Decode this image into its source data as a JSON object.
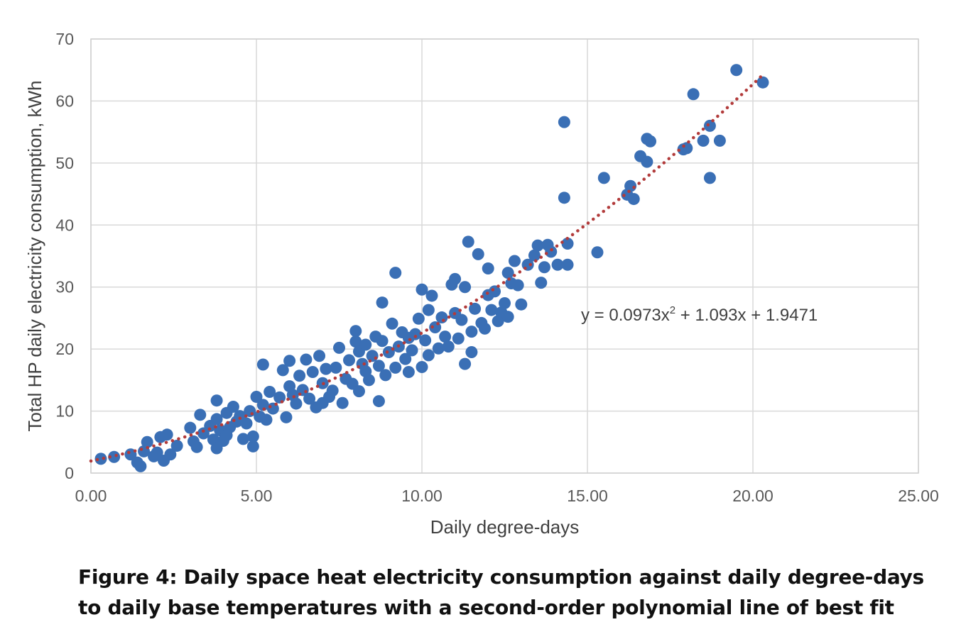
{
  "chart_data": {
    "type": "scatter",
    "xlabel": "Daily degree-days",
    "ylabel": "Total HP daily electricity consumption, kWh",
    "xlim": [
      0,
      25
    ],
    "ylim": [
      0,
      70
    ],
    "x_ticks": [
      "0.00",
      "5.00",
      "10.00",
      "15.00",
      "20.00",
      "25.00"
    ],
    "y_ticks": [
      "0",
      "10",
      "20",
      "30",
      "40",
      "50",
      "60",
      "70"
    ],
    "grid": true,
    "point_color": "#3a6fb5",
    "trendline": {
      "type": "polynomial-2",
      "coefficients": [
        0.0973,
        1.093,
        1.9471
      ],
      "x_range": [
        0,
        20.3
      ],
      "color": "#b23b3b",
      "style": "dotted",
      "equation_parts": [
        "y = 0.0973x",
        "2",
        " + 1.093x + 1.9471"
      ]
    },
    "points": [
      [
        0.3,
        2.3
      ],
      [
        0.7,
        2.6
      ],
      [
        1.2,
        3.0
      ],
      [
        1.4,
        1.7
      ],
      [
        1.5,
        1.1
      ],
      [
        1.6,
        3.5
      ],
      [
        1.7,
        5.0
      ],
      [
        1.9,
        2.7
      ],
      [
        2.0,
        3.3
      ],
      [
        2.1,
        5.8
      ],
      [
        2.2,
        2.0
      ],
      [
        2.3,
        6.2
      ],
      [
        2.4,
        3.0
      ],
      [
        2.6,
        4.4
      ],
      [
        3.0,
        7.3
      ],
      [
        3.1,
        5.1
      ],
      [
        3.2,
        4.2
      ],
      [
        3.3,
        9.4
      ],
      [
        3.4,
        6.4
      ],
      [
        3.6,
        7.6
      ],
      [
        3.7,
        5.4
      ],
      [
        3.8,
        8.7
      ],
      [
        3.8,
        4.0
      ],
      [
        3.8,
        11.7
      ],
      [
        3.9,
        6.9
      ],
      [
        4.0,
        5.2
      ],
      [
        4.1,
        6.1
      ],
      [
        4.1,
        9.7
      ],
      [
        4.2,
        7.4
      ],
      [
        4.3,
        10.7
      ],
      [
        4.4,
        8.3
      ],
      [
        4.5,
        9.2
      ],
      [
        4.6,
        5.5
      ],
      [
        4.7,
        8.0
      ],
      [
        4.8,
        10.0
      ],
      [
        4.9,
        4.3
      ],
      [
        4.9,
        5.9
      ],
      [
        5.0,
        12.3
      ],
      [
        5.1,
        9.1
      ],
      [
        5.2,
        17.5
      ],
      [
        5.2,
        11.0
      ],
      [
        5.3,
        8.6
      ],
      [
        5.4,
        13.1
      ],
      [
        5.5,
        10.4
      ],
      [
        5.7,
        12.2
      ],
      [
        5.8,
        16.6
      ],
      [
        5.9,
        9.0
      ],
      [
        6.0,
        14.0
      ],
      [
        6.0,
        18.1
      ],
      [
        6.1,
        12.6
      ],
      [
        6.2,
        11.2
      ],
      [
        6.3,
        15.7
      ],
      [
        6.4,
        13.4
      ],
      [
        6.5,
        18.3
      ],
      [
        6.6,
        12.0
      ],
      [
        6.7,
        16.3
      ],
      [
        6.8,
        10.6
      ],
      [
        6.9,
        18.9
      ],
      [
        7.0,
        14.5
      ],
      [
        7.0,
        11.3
      ],
      [
        7.1,
        16.8
      ],
      [
        7.2,
        12.3
      ],
      [
        7.3,
        13.3
      ],
      [
        7.4,
        17.0
      ],
      [
        7.5,
        20.2
      ],
      [
        7.6,
        11.3
      ],
      [
        7.7,
        15.2
      ],
      [
        7.8,
        18.2
      ],
      [
        7.9,
        14.4
      ],
      [
        8.0,
        21.2
      ],
      [
        8.0,
        22.9
      ],
      [
        8.1,
        19.6
      ],
      [
        8.1,
        13.2
      ],
      [
        8.2,
        17.6
      ],
      [
        8.3,
        16.4
      ],
      [
        8.3,
        20.7
      ],
      [
        8.4,
        15.0
      ],
      [
        8.5,
        18.9
      ],
      [
        8.6,
        22.0
      ],
      [
        8.7,
        11.6
      ],
      [
        8.7,
        17.3
      ],
      [
        8.8,
        27.5
      ],
      [
        8.8,
        21.3
      ],
      [
        8.9,
        15.8
      ],
      [
        9.0,
        19.5
      ],
      [
        9.1,
        24.1
      ],
      [
        9.2,
        32.3
      ],
      [
        9.2,
        17.0
      ],
      [
        9.3,
        20.4
      ],
      [
        9.4,
        22.7
      ],
      [
        9.5,
        18.4
      ],
      [
        9.6,
        21.8
      ],
      [
        9.6,
        16.3
      ],
      [
        9.7,
        19.8
      ],
      [
        9.8,
        22.4
      ],
      [
        9.9,
        24.9
      ],
      [
        10.0,
        17.1
      ],
      [
        10.0,
        29.6
      ],
      [
        10.1,
        21.4
      ],
      [
        10.2,
        26.3
      ],
      [
        10.2,
        19.0
      ],
      [
        10.3,
        28.6
      ],
      [
        10.4,
        23.5
      ],
      [
        10.5,
        20.1
      ],
      [
        10.6,
        25.1
      ],
      [
        10.7,
        22.0
      ],
      [
        10.8,
        20.4
      ],
      [
        10.9,
        30.4
      ],
      [
        11.0,
        25.8
      ],
      [
        11.0,
        31.3
      ],
      [
        11.1,
        21.7
      ],
      [
        11.2,
        24.7
      ],
      [
        11.3,
        17.6
      ],
      [
        11.3,
        30.0
      ],
      [
        11.4,
        37.3
      ],
      [
        11.5,
        22.8
      ],
      [
        11.5,
        19.5
      ],
      [
        11.6,
        26.5
      ],
      [
        11.7,
        35.3
      ],
      [
        11.8,
        24.2
      ],
      [
        11.9,
        23.3
      ],
      [
        12.0,
        28.7
      ],
      [
        12.0,
        33.0
      ],
      [
        12.1,
        26.3
      ],
      [
        12.2,
        29.3
      ],
      [
        12.3,
        24.5
      ],
      [
        12.4,
        25.9
      ],
      [
        12.5,
        27.4
      ],
      [
        12.6,
        32.3
      ],
      [
        12.6,
        25.2
      ],
      [
        12.7,
        30.6
      ],
      [
        12.8,
        34.2
      ],
      [
        12.9,
        30.3
      ],
      [
        13.0,
        27.2
      ],
      [
        13.2,
        33.6
      ],
      [
        13.4,
        35.1
      ],
      [
        13.5,
        36.7
      ],
      [
        13.6,
        30.7
      ],
      [
        13.7,
        33.2
      ],
      [
        13.8,
        36.8
      ],
      [
        13.9,
        35.7
      ],
      [
        14.1,
        33.6
      ],
      [
        14.3,
        44.4
      ],
      [
        14.3,
        56.6
      ],
      [
        14.4,
        37.0
      ],
      [
        14.4,
        33.6
      ],
      [
        15.3,
        35.6
      ],
      [
        15.5,
        47.6
      ],
      [
        16.2,
        44.9
      ],
      [
        16.3,
        46.3
      ],
      [
        16.4,
        44.2
      ],
      [
        16.6,
        51.1
      ],
      [
        16.8,
        50.2
      ],
      [
        16.8,
        53.9
      ],
      [
        16.9,
        53.5
      ],
      [
        17.9,
        52.2
      ],
      [
        18.0,
        52.4
      ],
      [
        18.2,
        61.1
      ],
      [
        18.5,
        53.6
      ],
      [
        18.7,
        56.0
      ],
      [
        18.7,
        47.6
      ],
      [
        19.0,
        53.6
      ],
      [
        19.5,
        65.0
      ],
      [
        20.3,
        63.0
      ]
    ]
  },
  "caption": {
    "line1": "Figure 4: Daily space heat electricity consumption against daily degree-days",
    "line2": "to daily base temperatures with a second-order polynomial line of best fit"
  }
}
